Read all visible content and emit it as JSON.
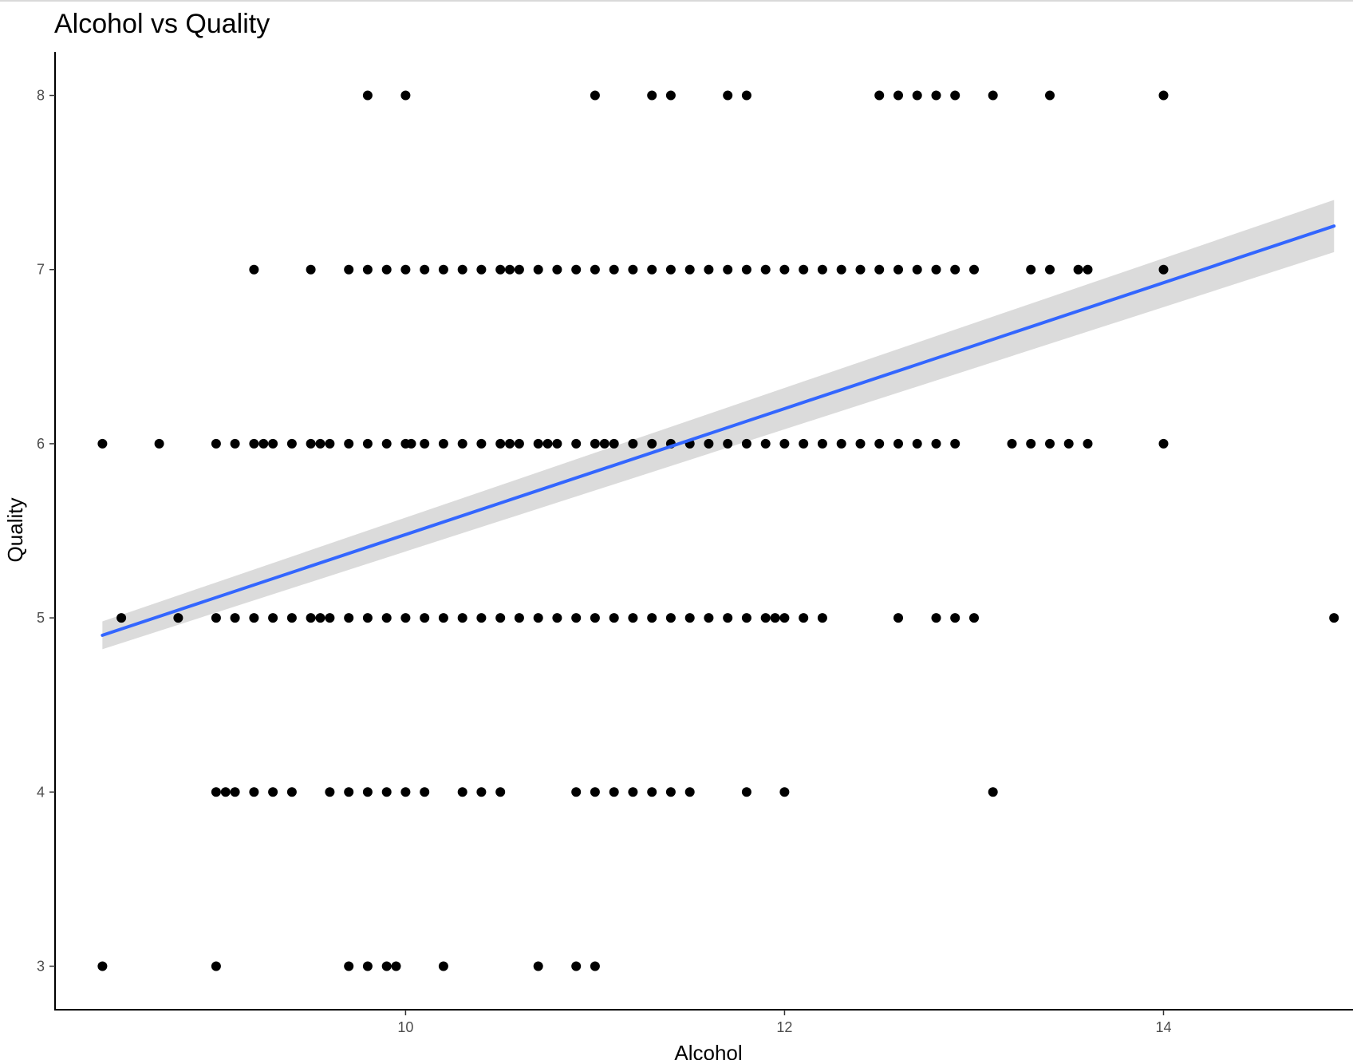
{
  "chart_data": {
    "type": "scatter",
    "title": "Alcohol vs Quality",
    "xlabel": "Alcohol",
    "ylabel": "Quality",
    "xlim": [
      8.15,
      15.0
    ],
    "ylim": [
      2.75,
      8.25
    ],
    "x_ticks": [
      10,
      12,
      14
    ],
    "y_ticks": [
      3,
      4,
      5,
      6,
      7,
      8
    ],
    "grid": false,
    "colors": {
      "points": "#000000",
      "trend_line": "#3366ff",
      "confidence_band": "#d9d9d9",
      "axis": "#000000",
      "tick_text": "#4d4d4d"
    },
    "series": [
      {
        "quality": 8,
        "x": [
          9.8,
          10.0,
          11.0,
          11.3,
          11.4,
          11.7,
          11.8,
          12.5,
          12.6,
          12.7,
          12.8,
          12.9,
          13.1,
          13.4,
          14.0
        ]
      },
      {
        "quality": 7,
        "x": [
          9.2,
          9.5,
          9.7,
          9.8,
          9.9,
          10.0,
          10.1,
          10.2,
          10.3,
          10.4,
          10.5,
          10.55,
          10.6,
          10.7,
          10.8,
          10.9,
          11.0,
          11.1,
          11.2,
          11.3,
          11.4,
          11.5,
          11.6,
          11.7,
          11.8,
          11.9,
          12.0,
          12.1,
          12.2,
          12.3,
          12.4,
          12.5,
          12.6,
          12.7,
          12.8,
          12.9,
          13.0,
          13.3,
          13.4,
          13.55,
          13.6,
          14.0
        ]
      },
      {
        "quality": 6,
        "x": [
          8.4,
          8.7,
          9.0,
          9.1,
          9.2,
          9.25,
          9.3,
          9.4,
          9.5,
          9.55,
          9.6,
          9.7,
          9.8,
          9.9,
          10.0,
          10.03,
          10.1,
          10.2,
          10.3,
          10.4,
          10.5,
          10.55,
          10.6,
          10.7,
          10.75,
          10.8,
          10.9,
          11.0,
          11.05,
          11.1,
          11.2,
          11.3,
          11.4,
          11.5,
          11.6,
          11.7,
          11.8,
          11.9,
          12.0,
          12.1,
          12.2,
          12.3,
          12.4,
          12.5,
          12.6,
          12.7,
          12.8,
          12.9,
          13.2,
          13.3,
          13.4,
          13.5,
          13.6,
          14.0
        ]
      },
      {
        "quality": 5,
        "x": [
          8.5,
          8.8,
          9.0,
          9.1,
          9.2,
          9.3,
          9.4,
          9.5,
          9.55,
          9.6,
          9.7,
          9.8,
          9.9,
          10.0,
          10.1,
          10.2,
          10.3,
          10.4,
          10.5,
          10.6,
          10.7,
          10.8,
          10.9,
          11.0,
          11.1,
          11.2,
          11.3,
          11.4,
          11.5,
          11.6,
          11.7,
          11.8,
          11.9,
          11.95,
          12.0,
          12.1,
          12.2,
          12.6,
          12.8,
          12.9,
          13.0,
          14.9
        ]
      },
      {
        "quality": 4,
        "x": [
          9.0,
          9.05,
          9.1,
          9.2,
          9.3,
          9.4,
          9.6,
          9.7,
          9.8,
          9.9,
          10.0,
          10.1,
          10.3,
          10.4,
          10.5,
          10.9,
          11.0,
          11.1,
          11.2,
          11.3,
          11.4,
          11.5,
          11.8,
          12.0,
          13.1
        ]
      },
      {
        "quality": 3,
        "x": [
          8.4,
          9.0,
          9.7,
          9.8,
          9.9,
          9.95,
          10.2,
          10.7,
          10.9,
          11.0
        ]
      }
    ],
    "trend_line": {
      "method": "linear fit with confidence band",
      "x": [
        8.4,
        14.9
      ],
      "y": [
        4.9,
        7.25
      ],
      "band_upper": [
        4.98,
        7.4
      ],
      "band_lower": [
        4.82,
        7.1
      ]
    }
  }
}
